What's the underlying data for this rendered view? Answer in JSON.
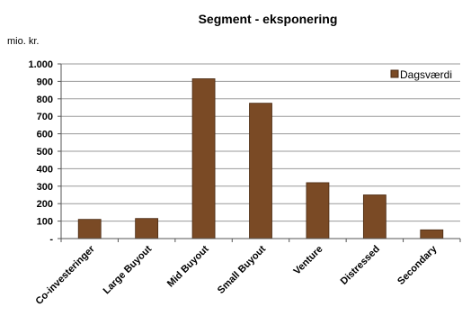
{
  "chart_data": {
    "type": "bar",
    "title": "Segment - eksponering",
    "unit_label": "mio. kr.",
    "xlabel": "",
    "ylabel": "",
    "categories": [
      "Co-investeringer",
      "Large Buyout",
      "Mid Buyout",
      "Small Buyout",
      "Venture",
      "Distressed",
      "Secondary"
    ],
    "series": [
      {
        "name": "Dagsværdi",
        "values": [
          110,
          115,
          915,
          775,
          320,
          250,
          50
        ],
        "color": "#7a4a25"
      }
    ],
    "ylim": [
      0,
      1000
    ],
    "yticks": [
      0,
      100,
      200,
      300,
      400,
      500,
      600,
      700,
      800,
      900,
      1000
    ],
    "ytick_labels": [
      "-",
      "100",
      "200",
      "300",
      "400",
      "500",
      "600",
      "700",
      "800",
      "900",
      "1.000"
    ],
    "grid": true,
    "legend_position": "top-right"
  }
}
